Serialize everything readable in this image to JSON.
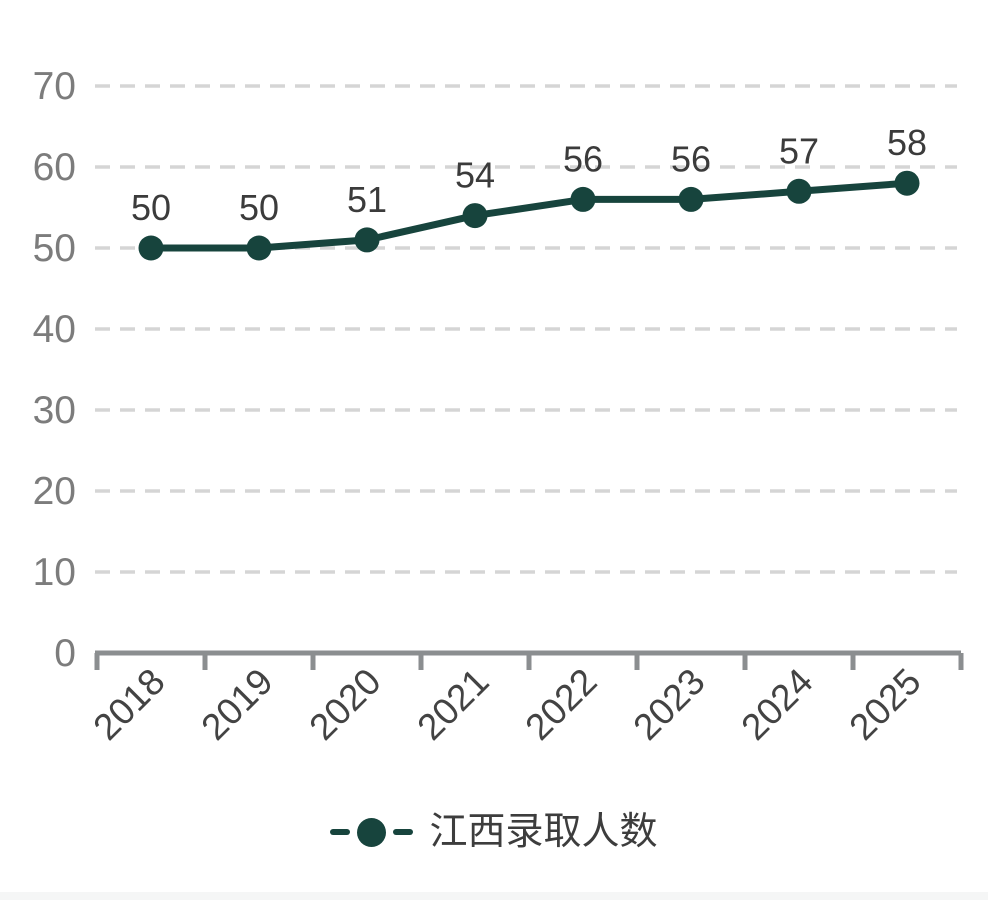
{
  "chart_data": {
    "type": "line",
    "title": "",
    "categories": [
      "2018",
      "2019",
      "2020",
      "2021",
      "2022",
      "2023",
      "2024",
      "2025"
    ],
    "series": [
      {
        "name": "江西录取人数",
        "values": [
          50,
          50,
          51,
          54,
          56,
          56,
          57,
          58
        ],
        "color": "#17443d"
      }
    ],
    "ylim": [
      0,
      70
    ],
    "yticks": [
      0,
      10,
      20,
      30,
      40,
      50,
      60,
      70
    ],
    "grid": "horizontal-dashed",
    "legend_position": "bottom",
    "point_labels": true,
    "x_label_rotation": -45,
    "colors": {
      "grid_line": "#d5d5d5",
      "axis_line": "#8b8e90",
      "y_tick_label": "#7c7c7c",
      "x_tick_label": "#434343",
      "data_label": "#3b3b3b",
      "legend_text": "#3d3d3d",
      "background": "#ffffff",
      "bottom_strip": "#f5f6f6"
    }
  }
}
